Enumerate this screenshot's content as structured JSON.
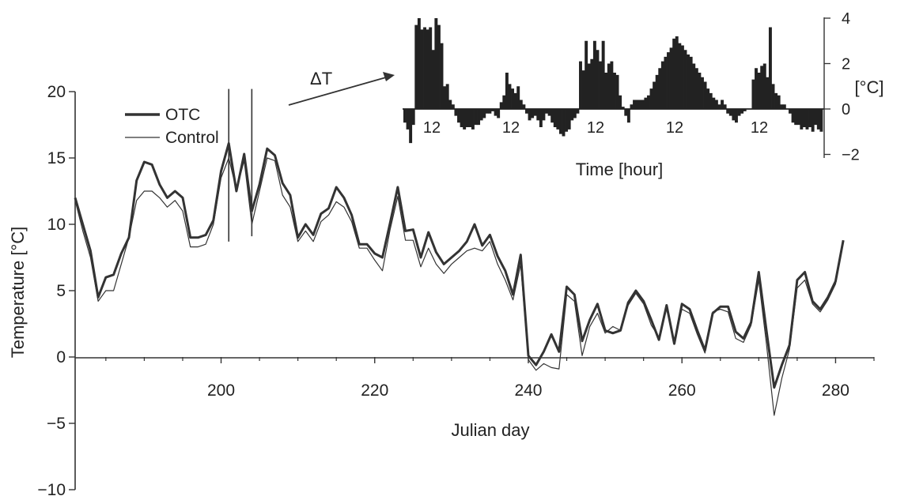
{
  "chart_data": [
    {
      "type": "line",
      "xlabel": "Julian day",
      "ylabel": "Temperature [°C]",
      "xlim": [
        181,
        285
      ],
      "ylim": [
        -10,
        20
      ],
      "xticks": [
        200,
        220,
        240,
        260,
        280
      ],
      "yticks": [
        -10,
        -5,
        0,
        5,
        10,
        15,
        20
      ],
      "grid": false,
      "legend_position": "top-left",
      "series": [
        {
          "name": "OTC",
          "style": "thick",
          "color": "#333333",
          "x": [
            181,
            182,
            183,
            184,
            185,
            186,
            187,
            188,
            189,
            190,
            191,
            192,
            193,
            194,
            195,
            196,
            197,
            198,
            199,
            200,
            201,
            202,
            203,
            204,
            205,
            206,
            207,
            208,
            209,
            210,
            211,
            212,
            213,
            214,
            215,
            216,
            217,
            218,
            219,
            220,
            221,
            222,
            223,
            224,
            225,
            226,
            227,
            228,
            229,
            230,
            231,
            232,
            233,
            234,
            235,
            236,
            237,
            238,
            239,
            240,
            241,
            242,
            243,
            244,
            245,
            246,
            247,
            248,
            249,
            250,
            251,
            252,
            253,
            254,
            255,
            256,
            257,
            258,
            259,
            260,
            261,
            262,
            263,
            264,
            265,
            266,
            267,
            268,
            269,
            270,
            271,
            272,
            273,
            274,
            275,
            276,
            277,
            278,
            279,
            280,
            281
          ],
          "y": [
            12,
            10,
            8,
            4.5,
            6,
            6.2,
            7.8,
            9,
            13.3,
            14.7,
            14.5,
            13,
            12,
            12.5,
            12,
            9,
            9,
            9.2,
            10.3,
            14,
            16.1,
            12.5,
            15.3,
            11,
            13,
            15.7,
            15.2,
            13.1,
            12.2,
            9,
            10,
            9.2,
            10.8,
            11.2,
            12.8,
            12,
            10.7,
            8.5,
            8.5,
            7.8,
            7.5,
            10.1,
            12.8,
            9.5,
            9.6,
            7.5,
            9.4,
            7.9,
            7,
            7.5,
            8,
            8.7,
            10,
            8.4,
            9.2,
            7.6,
            6.5,
            4.7,
            7.7,
            0.1,
            -0.6,
            0.4,
            1.7,
            0.4,
            5.3,
            4.7,
            1.2,
            2.8,
            4,
            2,
            1.8,
            2,
            4.1,
            5,
            4.2,
            2.8,
            1.3,
            3.9,
            1,
            4,
            3.6,
            2,
            0.5,
            3.3,
            3.8,
            3.8,
            1.9,
            1.4,
            2.6,
            6.4,
            2,
            -2.3,
            -0.6,
            0.9,
            5.8,
            6.4,
            4.2,
            3.6,
            4.5,
            5.7,
            8.8
          ]
        },
        {
          "name": "Control",
          "style": "thin",
          "color": "#333333",
          "x": [
            181,
            182,
            183,
            184,
            185,
            186,
            187,
            188,
            189,
            190,
            191,
            192,
            193,
            194,
            195,
            196,
            197,
            198,
            199,
            200,
            201,
            202,
            203,
            204,
            205,
            206,
            207,
            208,
            209,
            210,
            211,
            212,
            213,
            214,
            215,
            216,
            217,
            218,
            219,
            220,
            221,
            222,
            223,
            224,
            225,
            226,
            227,
            228,
            229,
            230,
            231,
            232,
            233,
            234,
            235,
            236,
            237,
            238,
            239,
            240,
            241,
            242,
            243,
            244,
            245,
            246,
            247,
            248,
            249,
            250,
            251,
            252,
            253,
            254,
            255,
            256,
            257,
            258,
            259,
            260,
            261,
            262,
            263,
            264,
            265,
            266,
            267,
            268,
            269,
            270,
            271,
            272,
            273,
            274,
            275,
            276,
            277,
            278,
            279,
            280,
            281
          ],
          "y": [
            11.8,
            9.5,
            7.5,
            4.2,
            5,
            5,
            7,
            9,
            11.8,
            12.5,
            12.5,
            12,
            11.3,
            11.8,
            11,
            8.3,
            8.3,
            8.5,
            10,
            13.5,
            15,
            12.6,
            14.8,
            10,
            12.5,
            15,
            14.8,
            12.2,
            11.3,
            8.7,
            9.5,
            8.7,
            10.2,
            10.7,
            11.7,
            11.3,
            10.2,
            8.2,
            8.2,
            7.3,
            6.5,
            9.6,
            12.1,
            8.8,
            8.8,
            6.8,
            8.2,
            7,
            6.3,
            7,
            7.5,
            8,
            8.2,
            8,
            8.7,
            7,
            5.8,
            4.3,
            7,
            -0.2,
            -1,
            -0.5,
            -0.8,
            -0.9,
            4.7,
            4.2,
            0.1,
            2.3,
            3.3,
            1.8,
            2.3,
            2,
            3.9,
            4.8,
            4,
            2.4,
            1.5,
            3.6,
            1.2,
            3.6,
            3.3,
            1.7,
            0.3,
            3.4,
            3.6,
            3.4,
            1.4,
            1.1,
            2.4,
            5.8,
            1,
            -4.4,
            -1.6,
            0.6,
            5.2,
            5.8,
            4,
            3.4,
            4.3,
            5.5,
            8.7
          ]
        }
      ],
      "annotations": [
        {
          "type": "vline",
          "x": 201,
          "from": 8.7,
          "to": 20.2
        },
        {
          "type": "vline",
          "x": 204,
          "from": 9.1,
          "to": 20.2
        }
      ]
    },
    {
      "type": "bar",
      "title": "ΔT",
      "xlabel": "Time [hour]",
      "ylabel": "[°C]",
      "ylim": [
        -2,
        4
      ],
      "yticks": [
        -2,
        0,
        2,
        4
      ],
      "xtick_labels": [
        "12",
        "12",
        "12",
        "12",
        "12"
      ],
      "grid": false,
      "color": "#222222",
      "values": [
        -0.6,
        -0.9,
        -1.5,
        -0.7,
        3.7,
        4.0,
        3.5,
        3.6,
        3.5,
        3.6,
        2.6,
        4.0,
        3.7,
        2.9,
        1.0,
        1.1,
        0.4,
        0.2,
        -0.3,
        -0.6,
        -0.8,
        -0.9,
        -0.8,
        -0.8,
        -0.9,
        -0.7,
        -0.7,
        -0.5,
        -0.4,
        -0.2,
        -0.2,
        -0.1,
        -0.3,
        -0.4,
        0.3,
        0.6,
        1.6,
        1.1,
        0.9,
        0.7,
        1.0,
        0.4,
        0.2,
        -0.2,
        -0.5,
        -0.4,
        -0.3,
        -0.5,
        -0.8,
        -0.5,
        -0.2,
        -0.3,
        -0.6,
        -0.8,
        -0.9,
        -1.1,
        -1.2,
        -1.0,
        -0.9,
        -0.5,
        -0.4,
        -0.2,
        2.1,
        1.7,
        3.0,
        2.0,
        2.2,
        3.0,
        2.6,
        2.1,
        3.0,
        1.6,
        2.0,
        2.1,
        1.6,
        1.5,
        0.6,
        0.1,
        -0.3,
        -0.6,
        0.2,
        0.4,
        0.4,
        0.4,
        0.4,
        0.5,
        0.6,
        0.9,
        1.2,
        1.5,
        1.8,
        2.1,
        2.3,
        2.5,
        2.7,
        3.1,
        3.2,
        2.9,
        2.8,
        2.6,
        2.4,
        2.3,
        2.0,
        1.8,
        1.6,
        1.4,
        1.2,
        0.9,
        0.7,
        0.5,
        0.4,
        0.2,
        0.4,
        0.2,
        -0.2,
        -0.3,
        -0.5,
        -0.6,
        -0.3,
        -0.2,
        -0.1,
        0.0,
        0.0,
        1.3,
        1.8,
        1.6,
        1.9,
        2.0,
        1.4,
        3.6,
        1.1,
        0.7,
        0.6,
        0.2,
        0.2,
        0.0,
        -0.2,
        -0.6,
        -0.7,
        -0.7,
        -0.9,
        -0.8,
        -0.9,
        -0.8,
        -1.0,
        -0.7,
        -0.9,
        -1.0
      ]
    }
  ],
  "inset_arrow_label": "ΔT",
  "legend_items": [
    {
      "name": "OTC",
      "style": "thick"
    },
    {
      "name": "Control",
      "style": "thin"
    }
  ]
}
